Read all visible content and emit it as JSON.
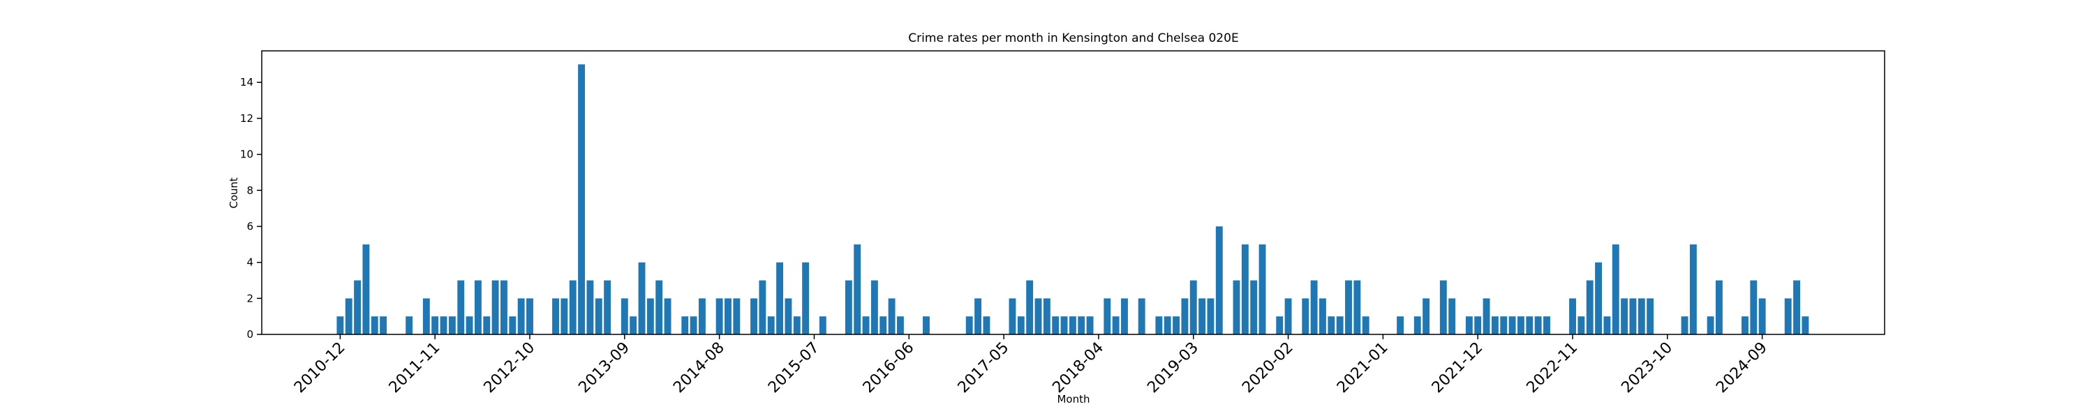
{
  "chart_data": {
    "type": "bar",
    "title": "Crime rates per month in Kensington and Chelsea 020E",
    "x_label": "Month",
    "y_label": "Count",
    "categories": [
      "2010-12",
      null,
      null,
      null,
      null,
      null,
      null,
      null,
      null,
      null,
      null,
      "2011-11",
      null,
      null,
      null,
      null,
      null,
      null,
      null,
      null,
      null,
      null,
      "2012-10",
      null,
      null,
      null,
      null,
      null,
      null,
      null,
      null,
      null,
      null,
      "2013-09",
      null,
      null,
      null,
      null,
      null,
      null,
      null,
      null,
      null,
      null,
      "2014-08",
      null,
      null,
      null,
      null,
      null,
      null,
      null,
      null,
      null,
      null,
      "2015-07",
      null,
      null,
      null,
      null,
      null,
      null,
      null,
      null,
      null,
      null,
      "2016-06",
      null,
      null,
      null,
      null,
      null,
      null,
      null,
      null,
      null,
      null,
      "2017-05",
      null,
      null,
      null,
      null,
      null,
      null,
      null,
      null,
      null,
      null,
      "2018-04",
      null,
      null,
      null,
      null,
      null,
      null,
      null,
      null,
      null,
      null,
      "2019-03",
      null,
      null,
      null,
      null,
      null,
      null,
      null,
      null,
      null,
      null,
      "2020-02",
      null,
      null,
      null,
      null,
      null,
      null,
      null,
      null,
      null,
      null,
      "2021-01",
      null,
      null,
      null,
      null,
      null,
      null,
      null,
      null,
      null,
      null,
      "2021-12",
      null,
      null,
      null,
      null,
      null,
      null,
      null,
      null,
      null,
      null,
      "2022-11",
      null,
      null,
      null,
      null,
      null,
      null,
      null,
      null,
      null,
      null,
      "2023-10",
      null,
      null,
      null,
      null,
      null,
      null,
      null,
      null,
      null,
      null,
      "2024-09",
      null,
      null,
      null,
      null,
      null
    ],
    "values": [
      1,
      2,
      3,
      5,
      1,
      1,
      0,
      0,
      1,
      0,
      2,
      1,
      1,
      1,
      3,
      1,
      3,
      1,
      3,
      3,
      1,
      2,
      2,
      0,
      0,
      2,
      2,
      3,
      15,
      3,
      2,
      3,
      0,
      2,
      1,
      4,
      2,
      3,
      2,
      0,
      1,
      1,
      2,
      0,
      2,
      2,
      2,
      0,
      2,
      3,
      1,
      4,
      2,
      1,
      4,
      0,
      1,
      0,
      0,
      3,
      5,
      1,
      3,
      1,
      2,
      1,
      0,
      0,
      1,
      0,
      0,
      0,
      0,
      1,
      2,
      1,
      0,
      0,
      2,
      1,
      3,
      2,
      2,
      1,
      1,
      1,
      1,
      1,
      0,
      2,
      1,
      2,
      0,
      2,
      0,
      1,
      1,
      1,
      2,
      3,
      2,
      2,
      6,
      0,
      3,
      5,
      3,
      5,
      0,
      1,
      2,
      0,
      2,
      3,
      2,
      1,
      1,
      3,
      3,
      1,
      0,
      0,
      0,
      1,
      0,
      1,
      2,
      0,
      3,
      2,
      0,
      1,
      1,
      2,
      1,
      1,
      1,
      1,
      1,
      1,
      1,
      0,
      0,
      2,
      1,
      3,
      4,
      1,
      5,
      2,
      2,
      2,
      2,
      0,
      0,
      0,
      1,
      5,
      0,
      1,
      3,
      0,
      0,
      1,
      3,
      2,
      0,
      0,
      2,
      3,
      1
    ],
    "color": "#1f77b4",
    "ylim": [
      0,
      15.75
    ],
    "yticks": [
      0,
      2,
      4,
      6,
      8,
      10,
      12,
      14
    ]
  }
}
